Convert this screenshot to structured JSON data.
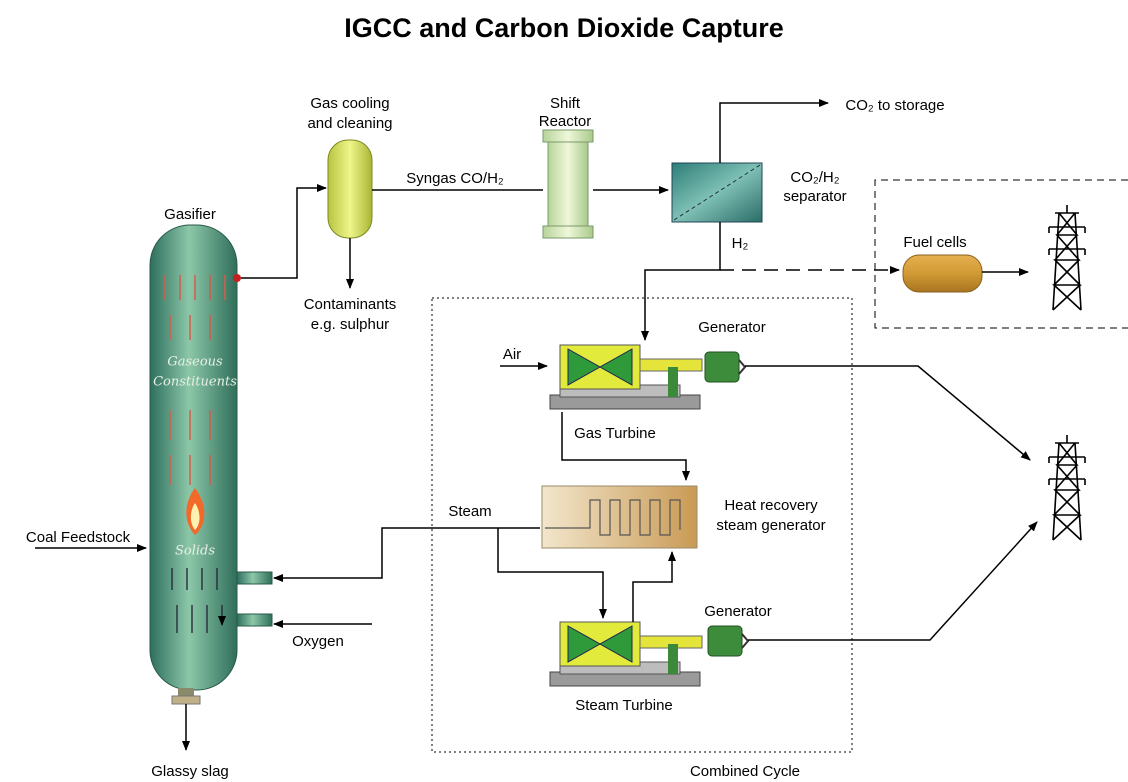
{
  "title": "IGCC and Carbon Dioxide Capture",
  "labels": {
    "gasifier": "Gasifier",
    "gaseous_constituents": [
      "Gaseous",
      "Constituents"
    ],
    "solids": "Solids",
    "gas_cooling": [
      "Gas cooling",
      "and cleaning"
    ],
    "contaminants": [
      "Contaminants",
      "e.g. sulphur"
    ],
    "syngas": "Syngas CO/H₂",
    "shift_reactor": [
      "Shift",
      "Reactor"
    ],
    "separator": [
      "CO₂/H₂",
      "separator"
    ],
    "co2_storage": "CO₂ to storage",
    "h2": "H₂",
    "fuel_cells": "Fuel cells",
    "generator_gas": "Generator",
    "air": "Air",
    "gas_turbine": "Gas Turbine",
    "hrsg": [
      "Heat recovery",
      "steam generator"
    ],
    "steam": "Steam",
    "generator_steam": "Generator",
    "steam_turbine": "Steam Turbine",
    "coal_feedstock": "Coal Feedstock",
    "oxygen": "Oxygen",
    "glassy_slag": "Glassy slag",
    "combined_cycle": "Combined Cycle"
  }
}
